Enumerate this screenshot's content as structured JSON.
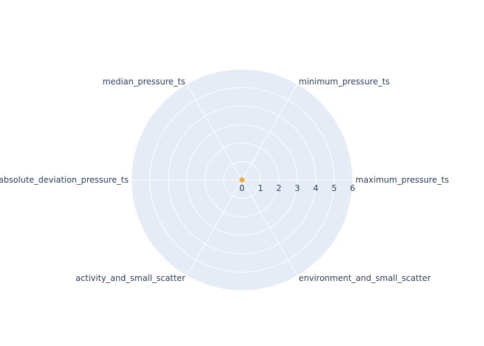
{
  "chart_data": {
    "type": "radar",
    "title": "",
    "categories": [
      "maximum_pressure_ts",
      "minimum_pressure_ts",
      "median_pressure_ts",
      "absolute_deviation_pressure_ts",
      "activity_and_small_scatter",
      "environment_and_small_scatter"
    ],
    "radial_range": [
      0,
      6
    ],
    "radial_ticks": [
      "0",
      "1",
      "2",
      "3",
      "4",
      "5",
      "6"
    ],
    "series": [
      {
        "values": [
          0.05,
          0.05,
          0.05,
          0.05,
          0.05,
          0.05
        ],
        "color": "#f2a93b"
      }
    ],
    "grid": true
  }
}
